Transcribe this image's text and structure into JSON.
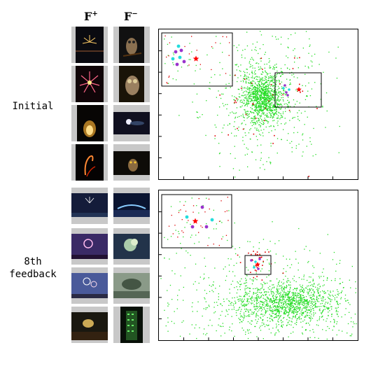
{
  "columns": {
    "positive": "F",
    "positive_sup": "+",
    "negative": "F",
    "negative_sup": "−"
  },
  "rows": [
    {
      "label_lines": [
        "Initial"
      ],
      "positive_thumbs": [
        "fireworks-night-icon",
        "fireworks-burst-icon",
        "fireworks-ground-icon",
        "fire-dancer-icon"
      ],
      "negative_thumbs": [
        "owl-perched-icon",
        "owl-closeup-icon",
        "moon-clouds-icon",
        "owl-flying-icon"
      ]
    },
    {
      "label_lines": [
        "8th",
        "feedback"
      ],
      "positive_thumbs": [
        "fireworks-harbor-icon",
        "fireworks-purple-sky-icon",
        "fireworks-bridge-icon",
        "fireworks-city-icon"
      ],
      "negative_thumbs": [
        "stadium-night-icon",
        "tree-aerial-icon",
        "bridge-landscape-icon",
        "tower-green-lights-icon"
      ]
    }
  ],
  "colors": {
    "background_points": "#22dd22",
    "negative_points": "#dd0000",
    "query_star": "#ff0000",
    "positive_markers": "#9933cc",
    "selected_markers": "#22dddd"
  }
}
